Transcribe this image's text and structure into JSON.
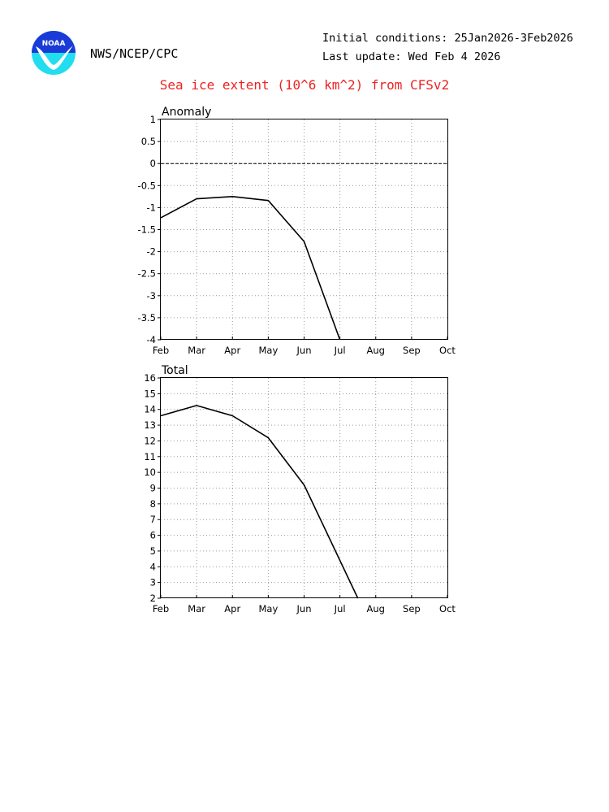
{
  "header": {
    "org": "NWS/NCEP/CPC",
    "initial_conditions": "Initial conditions: 25Jan2026-3Feb2026",
    "last_update": "Last update: Wed Feb 4 2026",
    "logo_text": "NOAA",
    "logo_colors": {
      "top": "#1a3bd6",
      "bottom": "#22ddf0",
      "bird": "#ffffff"
    }
  },
  "chart_data": [
    {
      "type": "line",
      "title": "Sea ice extent (10^6 km^2) from CFSv2",
      "panel_label": "Anomaly",
      "x": [
        "Feb",
        "Mar",
        "Apr",
        "May",
        "Jun",
        "Jul"
      ],
      "x_ticks": [
        "Feb",
        "Mar",
        "Apr",
        "May",
        "Jun",
        "Jul",
        "Aug",
        "Sep",
        "Oct"
      ],
      "y_ticks": [
        "1",
        "0.5",
        "0",
        "-0.5",
        "-1",
        "-1.5",
        "-2",
        "-2.5",
        "-3",
        "-3.5",
        "-4"
      ],
      "ylim": [
        -4,
        1
      ],
      "reference_line": 0,
      "series": [
        {
          "values": [
            -1.23,
            -0.8,
            -0.75,
            -0.84,
            -1.77,
            -4.0
          ],
          "color": "#000000"
        }
      ],
      "grid": true
    },
    {
      "type": "line",
      "panel_label": "Total",
      "x": [
        "Feb",
        "Mar",
        "Apr",
        "May",
        "Jun",
        "Jul+0.5"
      ],
      "x_ticks": [
        "Feb",
        "Mar",
        "Apr",
        "May",
        "Jun",
        "Jul",
        "Aug",
        "Sep",
        "Oct"
      ],
      "y_ticks": [
        "16",
        "15",
        "14",
        "13",
        "12",
        "11",
        "10",
        "9",
        "8",
        "7",
        "6",
        "5",
        "4",
        "3",
        "2"
      ],
      "ylim": [
        2,
        16
      ],
      "series": [
        {
          "values": [
            13.6,
            14.25,
            13.6,
            12.2,
            9.2,
            2.0
          ],
          "color": "#000000"
        }
      ],
      "grid": true
    }
  ]
}
